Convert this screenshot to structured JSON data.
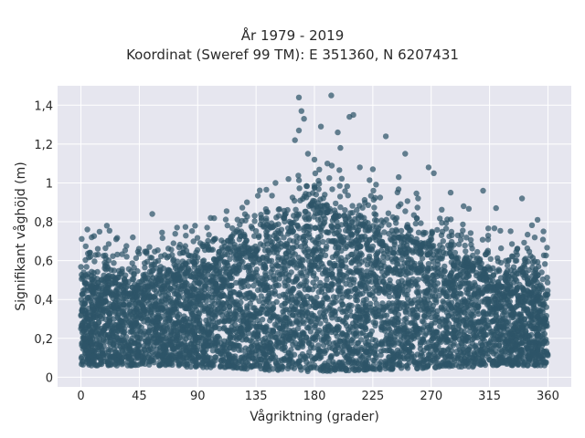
{
  "chart_data": {
    "type": "scatter",
    "title": "År 1979 - 2019",
    "subtitle": "Koordinat (Sweref 99 TM): E 351360, N 6207431",
    "xlabel": "Vågriktning (grader)",
    "ylabel": "Signifikant våghöjd (m)",
    "xlim": [
      -18,
      378
    ],
    "ylim": [
      -0.05,
      1.5
    ],
    "xticks": [
      0,
      45,
      90,
      135,
      180,
      225,
      270,
      315,
      360
    ],
    "yticks": [
      0,
      0.2,
      0.4,
      0.6,
      0.8,
      1,
      1.2,
      1.4
    ],
    "ytick_labels": [
      "0",
      "0,2",
      "0,4",
      "0,6",
      "0,8",
      "1",
      "1,2",
      "1,4"
    ],
    "grid": true,
    "marker_color": "#2e5468",
    "envelope": {
      "x": [
        0,
        20,
        45,
        70,
        90,
        110,
        135,
        160,
        180,
        200,
        225,
        250,
        270,
        295,
        315,
        340,
        360
      ],
      "y_bulk_top": [
        0.52,
        0.5,
        0.5,
        0.52,
        0.55,
        0.62,
        0.7,
        0.8,
        0.88,
        0.82,
        0.75,
        0.7,
        0.66,
        0.6,
        0.55,
        0.53,
        0.52
      ],
      "y_bulk_bottom": [
        0.06,
        0.06,
        0.06,
        0.06,
        0.05,
        0.05,
        0.04,
        0.03,
        0.03,
        0.03,
        0.04,
        0.04,
        0.05,
        0.05,
        0.06,
        0.06,
        0.06
      ]
    },
    "outliers": [
      [
        5,
        0.76
      ],
      [
        20,
        0.78
      ],
      [
        55,
        0.84
      ],
      [
        88,
        0.78
      ],
      [
        128,
        0.9
      ],
      [
        150,
        1.0
      ],
      [
        168,
        1.44
      ],
      [
        170,
        1.37
      ],
      [
        172,
        1.33
      ],
      [
        168,
        1.27
      ],
      [
        165,
        1.22
      ],
      [
        175,
        1.15
      ],
      [
        185,
        1.29
      ],
      [
        193,
        1.45
      ],
      [
        198,
        1.26
      ],
      [
        207,
        1.34
      ],
      [
        210,
        1.35
      ],
      [
        235,
        1.24
      ],
      [
        250,
        1.15
      ],
      [
        268,
        1.08
      ],
      [
        272,
        1.05
      ],
      [
        295,
        0.88
      ],
      [
        310,
        0.96
      ],
      [
        340,
        0.92
      ],
      [
        352,
        0.81
      ],
      [
        180,
        1.12
      ],
      [
        190,
        1.1
      ],
      [
        215,
        1.08
      ],
      [
        225,
        1.07
      ],
      [
        160,
        1.02
      ],
      [
        200,
        1.18
      ],
      [
        245,
        1.03
      ],
      [
        285,
        0.95
      ],
      [
        320,
        0.87
      ],
      [
        100,
        0.82
      ],
      [
        40,
        0.72
      ]
    ]
  }
}
